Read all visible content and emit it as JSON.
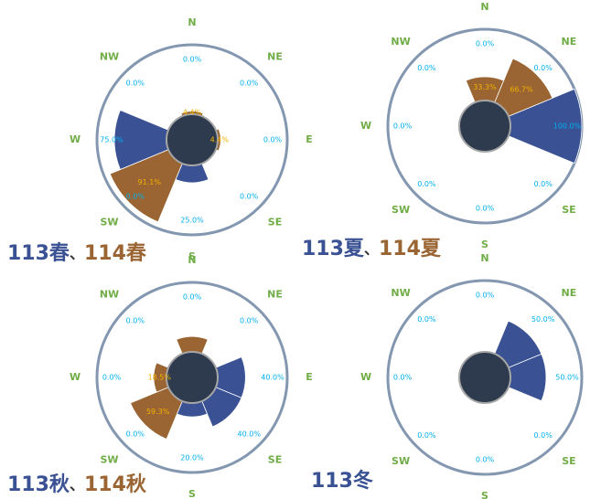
{
  "chart_data": [
    {
      "type": "rose",
      "rlim": [
        0,
        100
      ],
      "directions": [
        "N",
        "NE",
        "E",
        "SE",
        "S",
        "SW",
        "W",
        "NW"
      ],
      "separator": "、",
      "series": [
        {
          "name": "113春",
          "color": "#3a5294",
          "label_color": "#00b0f0",
          "values": [
            0,
            0,
            0,
            0,
            25,
            0,
            75,
            0
          ],
          "value_labels": [
            "0.0%",
            "0.0%",
            "0.0%",
            "0.0%",
            "25.0%",
            "0.0%",
            "75.0%",
            "0.0%"
          ]
        },
        {
          "name": "114春",
          "color": "#9a6532",
          "label_color": "#f0b000",
          "values": [
            4.4,
            null,
            4.4,
            null,
            null,
            91.1,
            null,
            null
          ],
          "value_labels": [
            "4.4%",
            null,
            "4.4%",
            null,
            null,
            "91.1%",
            null,
            null
          ]
        }
      ]
    },
    {
      "type": "rose",
      "rlim": [
        0,
        100
      ],
      "directions": [
        "N",
        "NE",
        "E",
        "SE",
        "S",
        "SW",
        "W",
        "NW"
      ],
      "separator": "、",
      "series": [
        {
          "name": "113夏",
          "color": "#3a5294",
          "label_color": "#00b0f0",
          "values": [
            0,
            0,
            100,
            0,
            0,
            0,
            0,
            0
          ],
          "value_labels": [
            "0.0%",
            "0.0%",
            "100.0%",
            "0.0%",
            "0.0%",
            "0.0%",
            "0.0%",
            "0.0%"
          ]
        },
        {
          "name": "114夏",
          "color": "#9a6532",
          "label_color": "#f0b000",
          "values": [
            33.3,
            66.7,
            null,
            null,
            null,
            null,
            null,
            null
          ],
          "value_labels": [
            "33.3%",
            "66.7%",
            null,
            null,
            null,
            null,
            null,
            null
          ]
        }
      ]
    },
    {
      "type": "rose",
      "rlim": [
        0,
        100
      ],
      "directions": [
        "N",
        "NE",
        "E",
        "SE",
        "S",
        "SW",
        "W",
        "NW"
      ],
      "separator": "、",
      "series": [
        {
          "name": "113秋",
          "color": "#3a5294",
          "label_color": "#00b0f0",
          "values": [
            0,
            0,
            40,
            40,
            20,
            0,
            0,
            0
          ],
          "value_labels": [
            "0.0%",
            "0.0%",
            "40.0%",
            "40.0%",
            "20.0%",
            "0.0%",
            "0.0%",
            "0.0%"
          ]
        },
        {
          "name": "114秋",
          "color": "#9a6532",
          "label_color": "#f0b000",
          "values": [
            22.2,
            null,
            null,
            null,
            null,
            59.3,
            18.5,
            null
          ],
          "value_labels": [
            null,
            null,
            null,
            null,
            null,
            "59.3%",
            "18.5%",
            null
          ]
        }
      ]
    },
    {
      "type": "rose",
      "rlim": [
        0,
        100
      ],
      "directions": [
        "N",
        "NE",
        "E",
        "SE",
        "S",
        "SW",
        "W",
        "NW"
      ],
      "series": [
        {
          "name": "113冬",
          "color": "#3a5294",
          "label_color": "#00b0f0",
          "values": [
            0,
            50,
            50,
            0,
            0,
            0,
            0,
            0
          ],
          "value_labels": [
            "0.0%",
            "50.0%",
            "50.0%",
            "0.0%",
            "0.0%",
            "0.0%",
            "0.0%",
            "0.0%"
          ]
        }
      ]
    }
  ]
}
